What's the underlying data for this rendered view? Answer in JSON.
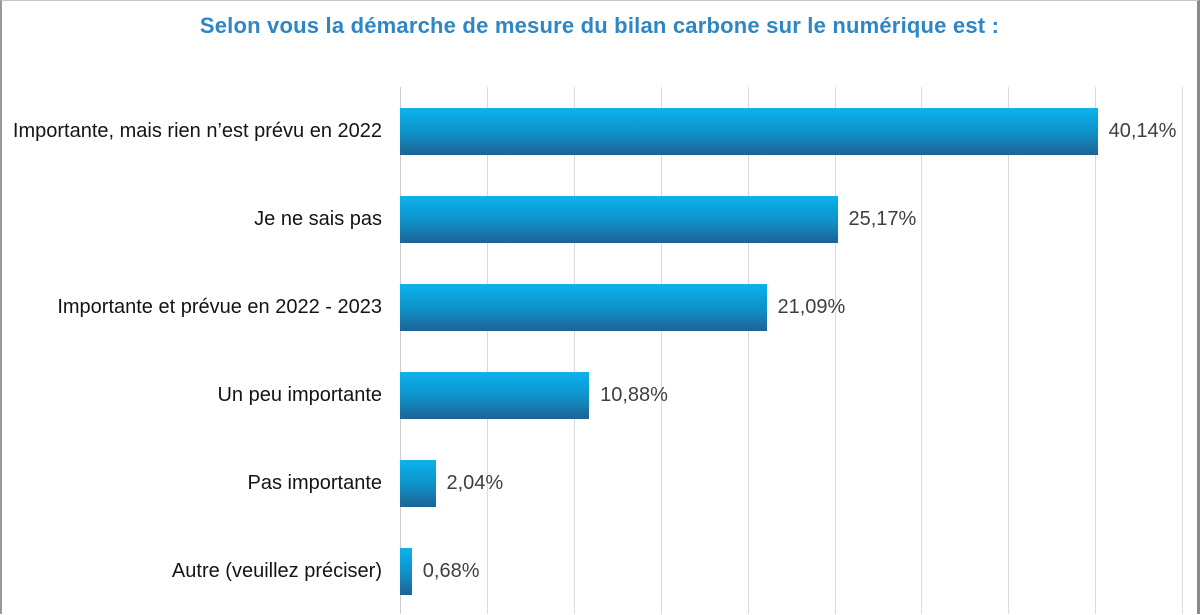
{
  "window": {
    "background": "#ffffff",
    "border_color": "#9a9a9a"
  },
  "chart_data": {
    "type": "bar",
    "orientation": "horizontal",
    "title": "Selon vous la démarche de mesure du bilan carbone sur le numérique est :",
    "title_color": "#2e86c4",
    "categories": [
      "Importante, mais rien n’est prévu en 2022",
      "Je ne sais pas",
      "Importante et prévue en 2022 - 2023",
      "Un peu importante",
      "Pas importante",
      "Autre (veuillez préciser)"
    ],
    "values": [
      40.14,
      25.17,
      21.09,
      10.88,
      2.04,
      0.68
    ],
    "display_values": [
      "40,14%",
      "25,17%",
      "21,09%",
      "10,88%",
      "2,04%",
      "0,68%"
    ],
    "xlabel": "",
    "ylabel": "",
    "xlim": [
      0,
      45
    ],
    "gridline_step_pct": 5,
    "grid": true,
    "gridline_color": "#dadada",
    "legend_position": "none",
    "bar_gradient_top": "#14b1e9",
    "bar_gradient_bottom": "#1d6294",
    "category_label_color": "#141414",
    "value_label_color": "#3f3f3f"
  }
}
